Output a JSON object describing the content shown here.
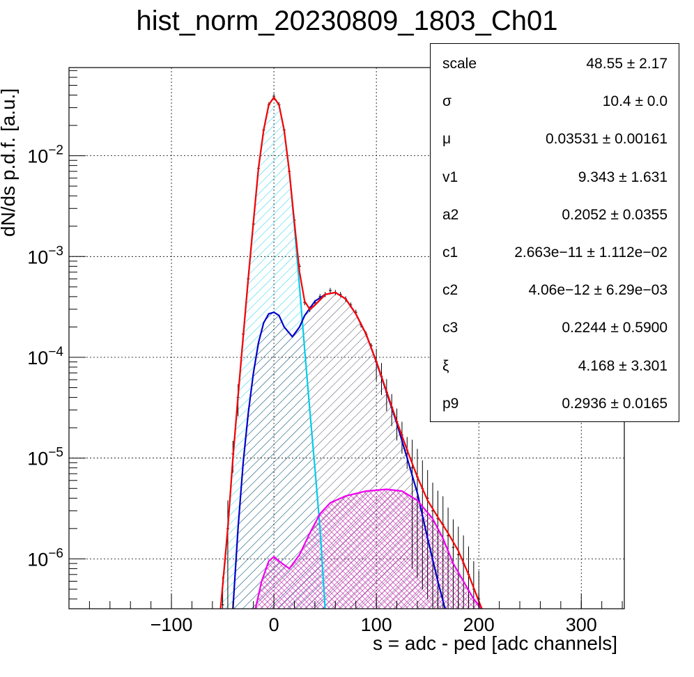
{
  "title": "hist_norm_20230809_1803_Ch01",
  "stats": [
    {
      "name": "scale",
      "value": "48.55 ± 2.17"
    },
    {
      "name": "σ",
      "value": "10.4 ± 0.0"
    },
    {
      "name": "μ",
      "value": "0.03531 ± 0.00161"
    },
    {
      "name": "v1",
      "value": "9.343 ± 1.631"
    },
    {
      "name": "a2",
      "value": "0.2052 ± 0.0355"
    },
    {
      "name": "c1",
      "value": "2.663e−11 ± 1.112e−02"
    },
    {
      "name": "c2",
      "value": "4.06e−12 ± 6.29e−03"
    },
    {
      "name": "c3",
      "value": "0.2244 ± 0.5900"
    },
    {
      "name": "ξ",
      "value": "4.168 ± 3.301"
    },
    {
      "name": "p9",
      "value": "0.2936 ± 0.0165"
    }
  ],
  "chart_data": {
    "type": "line",
    "title": "hist_norm_20230809_1803_Ch01",
    "xlabel": "s = adc - ped [adc channels]",
    "ylabel": "dN/ds p.d.f. [a.u.]",
    "xlim": [
      -200,
      342
    ],
    "ylim": [
      3.2e-07,
      0.075
    ],
    "yscale": "log",
    "grid": true,
    "x_ticks": [
      "−100",
      "0",
      "100",
      "200",
      "300"
    ],
    "y_ticks": [
      {
        "base": "10",
        "exp": "−2",
        "value": 0.01
      },
      {
        "base": "10",
        "exp": "−3",
        "value": 0.001
      },
      {
        "base": "10",
        "exp": "−4",
        "value": 0.0001
      },
      {
        "base": "10",
        "exp": "−5",
        "value": 1e-05
      },
      {
        "base": "10",
        "exp": "−6",
        "value": 1e-06
      }
    ],
    "series": [
      {
        "color": "#00ccee",
        "fill": "hatched",
        "points": [
          [
            -52,
            3.2e-07
          ],
          [
            -45,
            2e-06
          ],
          [
            -40,
            1e-05
          ],
          [
            -35,
            4e-05
          ],
          [
            -30,
            0.00016
          ],
          [
            -25,
            0.0006
          ],
          [
            -20,
            0.0022
          ],
          [
            -15,
            0.0075
          ],
          [
            -10,
            0.018
          ],
          [
            -5,
            0.032
          ],
          [
            0,
            0.038
          ],
          [
            5,
            0.032
          ],
          [
            10,
            0.018
          ],
          [
            15,
            0.007
          ],
          [
            20,
            0.002
          ],
          [
            25,
            0.0005
          ],
          [
            30,
            0.00012
          ],
          [
            35,
            3e-05
          ],
          [
            40,
            8e-06
          ],
          [
            45,
            2e-06
          ],
          [
            50,
            3.2e-07
          ]
        ]
      },
      {
        "color": "#0000cc",
        "fill": "hatched",
        "points": [
          [
            -40,
            3.2e-07
          ],
          [
            -35,
            2e-06
          ],
          [
            -30,
            9e-06
          ],
          [
            -25,
            2.8e-05
          ],
          [
            -20,
            7e-05
          ],
          [
            -15,
            0.00014
          ],
          [
            -10,
            0.00022
          ],
          [
            -5,
            0.00027
          ],
          [
            0,
            0.00028
          ],
          [
            5,
            0.00026
          ],
          [
            10,
            0.0002
          ],
          [
            18,
            0.00016
          ],
          [
            25,
            0.0002
          ],
          [
            30,
            0.00026
          ],
          [
            40,
            0.00036
          ],
          [
            50,
            0.00042
          ],
          [
            60,
            0.00044
          ],
          [
            70,
            0.00038
          ],
          [
            80,
            0.00027
          ],
          [
            90,
            0.00017
          ],
          [
            100,
            9e-05
          ],
          [
            110,
            4.5e-05
          ],
          [
            120,
            2.2e-05
          ],
          [
            130,
            1e-05
          ],
          [
            140,
            4.5e-06
          ],
          [
            150,
            1.6e-06
          ],
          [
            160,
            6e-07
          ],
          [
            167,
            3.2e-07
          ]
        ]
      },
      {
        "color": "#ee00ee",
        "fill": "crosshatched",
        "points": [
          [
            -18,
            3.2e-07
          ],
          [
            -12,
            6e-07
          ],
          [
            -5,
            9.5e-07
          ],
          [
            0,
            1.05e-06
          ],
          [
            5,
            9.5e-07
          ],
          [
            15,
            8e-07
          ],
          [
            25,
            1.1e-06
          ],
          [
            35,
            1.8e-06
          ],
          [
            45,
            2.8e-06
          ],
          [
            55,
            3.6e-06
          ],
          [
            70,
            4.2e-06
          ],
          [
            90,
            4.7e-06
          ],
          [
            110,
            4.9e-06
          ],
          [
            125,
            4.7e-06
          ],
          [
            140,
            3.8e-06
          ],
          [
            155,
            2.5e-06
          ],
          [
            165,
            1.6e-06
          ],
          [
            175,
            9e-07
          ],
          [
            185,
            6e-07
          ],
          [
            195,
            4e-07
          ],
          [
            203,
            3.2e-07
          ]
        ]
      },
      {
        "color": "#ff0000",
        "fill": "none",
        "points": [
          [
            -52,
            3.2e-07
          ],
          [
            -45,
            2e-06
          ],
          [
            -40,
            1e-05
          ],
          [
            -35,
            4.1e-05
          ],
          [
            -30,
            0.00016
          ],
          [
            -25,
            0.00061
          ],
          [
            -20,
            0.0022
          ],
          [
            -15,
            0.0076
          ],
          [
            -10,
            0.018
          ],
          [
            -5,
            0.032
          ],
          [
            0,
            0.038
          ],
          [
            5,
            0.032
          ],
          [
            10,
            0.018
          ],
          [
            15,
            0.007
          ],
          [
            20,
            0.0022
          ],
          [
            25,
            0.0007
          ],
          [
            30,
            0.00036
          ],
          [
            35,
            0.0003
          ],
          [
            40,
            0.00033
          ],
          [
            50,
            0.00042
          ],
          [
            60,
            0.00044
          ],
          [
            70,
            0.00038
          ],
          [
            80,
            0.00027
          ],
          [
            90,
            0.00017
          ],
          [
            100,
            9.1e-05
          ],
          [
            110,
            4.6e-05
          ],
          [
            120,
            2.3e-05
          ],
          [
            130,
            1.2e-05
          ],
          [
            140,
            6.5e-06
          ],
          [
            150,
            3.8e-06
          ],
          [
            160,
            2.6e-06
          ],
          [
            170,
            1.8e-06
          ],
          [
            180,
            1.2e-06
          ],
          [
            190,
            7e-07
          ],
          [
            200,
            3.8e-07
          ],
          [
            203,
            3.2e-07
          ]
        ]
      }
    ],
    "histogram": {
      "color": "#000000",
      "points": [
        [
          -50,
          3.5e-07
        ],
        [
          -45,
          2e-06
        ],
        [
          -40,
          1.1e-05
        ],
        [
          -35,
          4e-05
        ],
        [
          -30,
          0.00017
        ],
        [
          -25,
          0.0006
        ],
        [
          -20,
          0.0021
        ],
        [
          -15,
          0.0075
        ],
        [
          -10,
          0.018
        ],
        [
          -5,
          0.032
        ],
        [
          0,
          0.039
        ],
        [
          5,
          0.032
        ],
        [
          10,
          0.018
        ],
        [
          15,
          0.007
        ],
        [
          20,
          0.0023
        ],
        [
          25,
          0.0008
        ],
        [
          30,
          0.00035
        ],
        [
          35,
          0.0003
        ],
        [
          40,
          0.00035
        ],
        [
          45,
          0.0004
        ],
        [
          50,
          0.00042
        ],
        [
          55,
          0.00046
        ],
        [
          60,
          0.00044
        ],
        [
          65,
          0.00042
        ],
        [
          70,
          0.00038
        ],
        [
          75,
          0.00033
        ],
        [
          80,
          0.00028
        ],
        [
          85,
          0.00021
        ],
        [
          90,
          0.00017
        ],
        [
          95,
          0.00013
        ],
        [
          100,
          9e-05
        ],
        [
          105,
          6.5e-05
        ],
        [
          110,
          4.5e-05
        ],
        [
          115,
          3.2e-05
        ],
        [
          120,
          2.3e-05
        ],
        [
          125,
          1.7e-05
        ],
        [
          130,
          1.2e-05
        ],
        [
          135,
          8e-06
        ],
        [
          140,
          6.5e-06
        ],
        [
          145,
          5e-06
        ],
        [
          150,
          4e-06
        ],
        [
          155,
          3e-06
        ],
        [
          160,
          2.5e-06
        ],
        [
          165,
          2.2e-06
        ],
        [
          170,
          1.7e-06
        ],
        [
          175,
          1.3e-06
        ],
        [
          180,
          1.1e-06
        ],
        [
          185,
          9e-07
        ],
        [
          190,
          7e-07
        ],
        [
          195,
          5e-07
        ],
        [
          200,
          4e-07
        ]
      ]
    }
  }
}
